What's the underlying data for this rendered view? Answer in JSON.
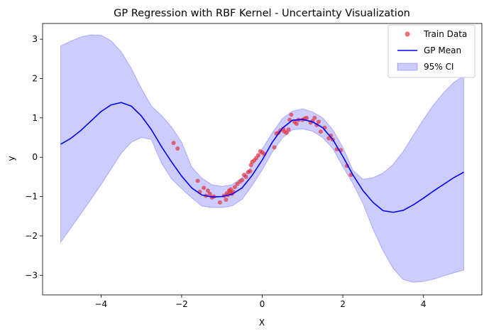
{
  "chart_data": {
    "type": "line",
    "title": "GP Regression with RBF Kernel - Uncertainty Visualization",
    "xlabel": "X",
    "ylabel": "y",
    "xlim": [
      -5.45,
      5.45
    ],
    "ylim": [
      -3.5,
      3.4
    ],
    "xticks": [
      -4,
      -2,
      0,
      2,
      4
    ],
    "yticks": [
      -3,
      -2,
      -1,
      0,
      1,
      2,
      3
    ],
    "grid": false,
    "legend_position": "top-right",
    "series": [
      {
        "name": "GP Mean",
        "kind": "line",
        "color": "#0000ff",
        "x": [
          -5.0,
          -4.75,
          -4.5,
          -4.25,
          -4.0,
          -3.75,
          -3.5,
          -3.25,
          -3.0,
          -2.75,
          -2.5,
          -2.25,
          -2.0,
          -1.75,
          -1.5,
          -1.25,
          -1.0,
          -0.75,
          -0.5,
          -0.25,
          0.0,
          0.25,
          0.5,
          0.75,
          1.0,
          1.25,
          1.5,
          1.75,
          2.0,
          2.25,
          2.5,
          2.75,
          3.0,
          3.25,
          3.5,
          3.75,
          4.0,
          4.25,
          4.5,
          4.75,
          5.0
        ],
        "y": [
          0.33,
          0.48,
          0.68,
          0.92,
          1.16,
          1.33,
          1.39,
          1.3,
          1.05,
          0.7,
          0.27,
          -0.12,
          -0.48,
          -0.78,
          -0.96,
          -1.01,
          -1.0,
          -0.94,
          -0.78,
          -0.46,
          -0.07,
          0.38,
          0.74,
          0.94,
          0.96,
          0.9,
          0.75,
          0.45,
          0.02,
          -0.45,
          -0.85,
          -1.15,
          -1.36,
          -1.4,
          -1.35,
          -1.21,
          -1.04,
          -0.86,
          -0.69,
          -0.52,
          -0.38
        ]
      },
      {
        "name": "95% CI",
        "kind": "band",
        "color": "#0000ff",
        "x": [
          -5.0,
          -4.75,
          -4.5,
          -4.25,
          -4.0,
          -3.75,
          -3.5,
          -3.25,
          -3.0,
          -2.75,
          -2.5,
          -2.25,
          -2.0,
          -1.75,
          -1.5,
          -1.25,
          -1.0,
          -0.75,
          -0.5,
          -0.25,
          0.0,
          0.25,
          0.5,
          0.75,
          1.0,
          1.25,
          1.5,
          1.75,
          2.0,
          2.25,
          2.5,
          2.75,
          3.0,
          3.25,
          3.5,
          3.75,
          4.0,
          4.25,
          4.5,
          4.75,
          5.0
        ],
        "upper": [
          2.83,
          2.95,
          3.06,
          3.11,
          3.1,
          2.96,
          2.68,
          2.26,
          1.75,
          1.3,
          1.06,
          0.77,
          0.38,
          -0.25,
          -0.53,
          -0.7,
          -0.74,
          -0.7,
          -0.52,
          -0.22,
          0.21,
          0.62,
          0.98,
          1.17,
          1.23,
          1.15,
          1.0,
          0.7,
          0.25,
          -0.33,
          -0.56,
          -0.52,
          -0.4,
          -0.18,
          0.15,
          0.56,
          0.96,
          1.33,
          1.64,
          1.9,
          2.07
        ],
        "lower": [
          -2.16,
          -1.8,
          -1.44,
          -1.07,
          -0.7,
          -0.3,
          0.1,
          0.38,
          0.5,
          0.45,
          -0.15,
          -0.55,
          -0.8,
          -1.03,
          -1.24,
          -1.28,
          -1.28,
          -1.24,
          -1.07,
          -0.72,
          -0.32,
          0.13,
          0.49,
          0.7,
          0.72,
          0.66,
          0.5,
          0.22,
          -0.24,
          -0.67,
          -1.18,
          -1.83,
          -2.38,
          -2.83,
          -3.11,
          -3.18,
          -3.16,
          -3.1,
          -3.02,
          -2.94,
          -2.87
        ]
      },
      {
        "name": "Train Data",
        "kind": "scatter",
        "color": "#e4303b",
        "x": [
          -2.2,
          -2.1,
          -1.6,
          -1.55,
          -1.45,
          -1.4,
          -1.35,
          -1.3,
          -1.25,
          -1.2,
          -1.05,
          -0.95,
          -0.9,
          -0.88,
          -0.85,
          -0.82,
          -0.8,
          -0.78,
          -0.75,
          -0.72,
          -0.68,
          -0.62,
          -0.55,
          -0.5,
          -0.45,
          -0.4,
          -0.35,
          -0.3,
          -0.28,
          -0.25,
          -0.2,
          -0.15,
          -0.1,
          -0.05,
          0.0,
          0.05,
          0.3,
          0.35,
          0.4,
          0.45,
          0.52,
          0.55,
          0.6,
          0.65,
          0.68,
          0.72,
          0.8,
          0.85,
          0.9,
          1.0,
          1.05,
          1.1,
          1.2,
          1.25,
          1.3,
          1.35,
          1.4,
          1.45,
          1.55,
          1.65,
          1.7,
          1.75,
          1.85,
          1.95,
          2.1,
          2.2
        ],
        "y": [
          0.36,
          0.22,
          -0.6,
          -0.88,
          -0.78,
          -0.98,
          -0.85,
          -0.93,
          -1.02,
          -1.0,
          -1.15,
          -0.98,
          -1.08,
          -0.92,
          -0.96,
          -0.85,
          -0.88,
          -0.82,
          -0.93,
          -0.88,
          -0.76,
          -0.68,
          -0.62,
          -0.58,
          -0.45,
          -0.5,
          -0.38,
          -0.35,
          -0.2,
          -0.12,
          -0.08,
          -0.02,
          0.05,
          0.15,
          0.12,
          0.08,
          0.25,
          0.6,
          0.62,
          0.68,
          0.72,
          0.65,
          0.62,
          0.7,
          0.95,
          1.08,
          0.9,
          0.85,
          0.95,
          0.95,
          0.98,
          1.0,
          0.88,
          0.92,
          1.0,
          0.82,
          0.9,
          0.65,
          0.75,
          0.48,
          0.55,
          0.45,
          0.2,
          0.18,
          -0.22,
          -0.45
        ]
      }
    ]
  },
  "legend": {
    "items": [
      {
        "label": "Train Data",
        "kind": "marker",
        "color": "#e4303b"
      },
      {
        "label": "GP Mean",
        "kind": "line",
        "color": "#0000ff"
      },
      {
        "label": "95% CI",
        "kind": "patch",
        "color": "#0000ff"
      }
    ]
  }
}
